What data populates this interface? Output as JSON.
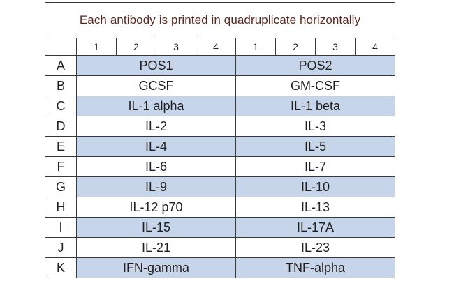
{
  "title": "Each antibody is printed in quadruplicate horizontally",
  "column_numbers": [
    "1",
    "2",
    "3",
    "4",
    "1",
    "2",
    "3",
    "4"
  ],
  "rows": [
    {
      "label": "A",
      "left": "POS1",
      "right": "POS2",
      "shaded": true
    },
    {
      "label": "B",
      "left": "GCSF",
      "right": "GM-CSF",
      "shaded": false
    },
    {
      "label": "C",
      "left": "IL-1 alpha",
      "right": "IL-1 beta",
      "shaded": true
    },
    {
      "label": "D",
      "left": "IL-2",
      "right": "IL-3",
      "shaded": false
    },
    {
      "label": "E",
      "left": "IL-4",
      "right": "IL-5",
      "shaded": true
    },
    {
      "label": "F",
      "left": "IL-6",
      "right": "IL-7",
      "shaded": false
    },
    {
      "label": "G",
      "left": "IL-9",
      "right": "IL-10",
      "shaded": true
    },
    {
      "label": "H",
      "left": "IL-12 p70",
      "right": "IL-13",
      "shaded": false
    },
    {
      "label": "I",
      "left": "IL-15",
      "right": "IL-17A",
      "shaded": true
    },
    {
      "label": "J",
      "left": "IL-21",
      "right": "IL-23",
      "shaded": false
    },
    {
      "label": "K",
      "left": "IFN-gamma",
      "right": "TNF-alpha",
      "shaded": true
    }
  ],
  "colors": {
    "shaded_row": "#c6d5ea",
    "title_text": "#5b2a20",
    "border": "#3a3a3a"
  }
}
